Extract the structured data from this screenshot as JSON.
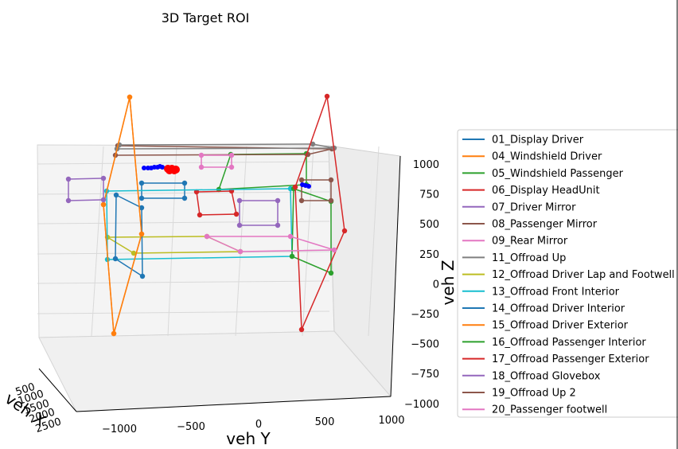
{
  "chart_data": {
    "type": "line3d",
    "title": "3D Target ROI",
    "xlabel": "veh X",
    "ylabel": "veh Y",
    "zlabel": "veh Z",
    "y_ticks": [
      "−1000",
      "−500",
      "0",
      "500",
      "1000"
    ],
    "z_ticks": [
      "1000",
      "750",
      "500",
      "250",
      "0",
      "−250",
      "−500",
      "−750",
      "−1000"
    ],
    "x_ticks": [
      "500",
      "1000",
      "1500",
      "2000",
      "2500"
    ],
    "legend_position": "right",
    "series": [
      {
        "name": "01_Display Driver",
        "color": "#1f77b4",
        "points": [
          [
            178,
            230
          ],
          [
            232,
            230
          ],
          [
            232,
            249
          ],
          [
            178,
            249
          ],
          [
            178,
            230
          ]
        ]
      },
      {
        "name": "04_Windshield Driver",
        "color": "#ff7f0e",
        "points": [
          [
            163,
            122
          ],
          [
            130,
            257
          ],
          [
            143,
            419
          ],
          [
            178,
            294
          ],
          [
            163,
            122
          ]
        ]
      },
      {
        "name": "05_Windshield Passenger",
        "color": "#2ca02c",
        "points": [
          [
            290,
            194
          ],
          [
            275,
            238
          ],
          [
            385,
            232
          ],
          [
            385,
            193
          ],
          [
            290,
            194
          ]
        ]
      },
      {
        "name": "06_Display HeadUnit",
        "color": "#d62728",
        "points": [
          [
            247,
            241
          ],
          [
            291,
            240
          ],
          [
            297,
            269
          ],
          [
            251,
            270
          ],
          [
            247,
            241
          ]
        ]
      },
      {
        "name": "07_Driver Mirror",
        "color": "#9467bd",
        "points": [
          [
            301,
            252
          ],
          [
            349,
            252
          ],
          [
            349,
            283
          ],
          [
            301,
            283
          ],
          [
            301,
            252
          ]
        ]
      },
      {
        "name": "08_Passenger Mirror",
        "color": "#8c564b",
        "points": [
          [
            148,
            183
          ],
          [
            417,
            187
          ],
          [
            387,
            194
          ],
          [
            145,
            195
          ],
          [
            148,
            183
          ]
        ]
      },
      {
        "name": "09_Rear Mirror",
        "color": "#e377c2",
        "points": [
          [
            253,
            195
          ],
          [
            291,
            195
          ],
          [
            291,
            210
          ],
          [
            253,
            210
          ],
          [
            253,
            195
          ]
        ]
      },
      {
        "name": "11_Offroad Up",
        "color": "#7f7f7f",
        "points": [
          [
            150,
            182
          ],
          [
            393,
            181
          ],
          [
            420,
            186
          ],
          [
            147,
            187
          ],
          [
            150,
            182
          ]
        ]
      },
      {
        "name": "12_Offroad Driver Lap and Footwell",
        "color": "#bcbd22",
        "points": [
          [
            135,
            298
          ],
          [
            260,
            297
          ],
          [
            302,
            316
          ],
          [
            168,
            318
          ],
          [
            135,
            298
          ]
        ]
      },
      {
        "name": "13_Offroad Front Interior",
        "color": "#17becf",
        "points": [
          [
            134,
            240
          ],
          [
            365,
            237
          ],
          [
            367,
            322
          ],
          [
            135,
            326
          ],
          [
            134,
            240
          ]
        ]
      },
      {
        "name": "14_Offroad Driver Interior",
        "color": "#1f77b4",
        "points": [
          [
            146,
            245
          ],
          [
            178,
            261
          ],
          [
            179,
            347
          ],
          [
            145,
            325
          ],
          [
            146,
            245
          ]
        ]
      },
      {
        "name": "15_Offroad Driver Exterior",
        "color": "#ff7f0e",
        "points": [
          [
            163,
            122
          ],
          [
            130,
            257
          ],
          [
            143,
            419
          ],
          [
            178,
            294
          ],
          [
            163,
            122
          ]
        ]
      },
      {
        "name": "16_Offroad Passenger Interior",
        "color": "#2ca02c",
        "points": [
          [
            369,
            237
          ],
          [
            416,
            253
          ],
          [
            416,
            343
          ],
          [
            367,
            322
          ],
          [
            369,
            237
          ]
        ]
      },
      {
        "name": "17_Offroad Passenger Exterior",
        "color": "#d62728",
        "points": [
          [
            411,
            121
          ],
          [
            371,
            235
          ],
          [
            379,
            414
          ],
          [
            433,
            290
          ],
          [
            411,
            121
          ]
        ]
      },
      {
        "name": "18_Offroad Glovebox",
        "color": "#9467bd",
        "points": [
          [
            86,
            225
          ],
          [
            130,
            224
          ],
          [
            130,
            251
          ],
          [
            86,
            252
          ],
          [
            86,
            225
          ]
        ]
      },
      {
        "name": "19_Offroad Up 2",
        "color": "#8c564b",
        "points": [
          [
            379,
            226
          ],
          [
            416,
            226
          ],
          [
            416,
            252
          ],
          [
            379,
            252
          ],
          [
            379,
            226
          ]
        ]
      },
      {
        "name": "20_Passenger footwell",
        "color": "#e377c2",
        "points": [
          [
            260,
            297
          ],
          [
            365,
            297
          ],
          [
            420,
            314
          ],
          [
            302,
            316
          ],
          [
            260,
            297
          ]
        ]
      }
    ],
    "marker_points": [
      {
        "color": "#0000ff",
        "points": [
          [
            181,
            211
          ],
          [
            186,
            211
          ],
          [
            190,
            211
          ],
          [
            194,
            210
          ],
          [
            198,
            210
          ],
          [
            201,
            209
          ],
          [
            204,
            210
          ],
          [
            380,
            232
          ],
          [
            384,
            233
          ],
          [
            388,
            234
          ]
        ]
      },
      {
        "color": "#ff0000",
        "points": [
          [
            211,
            212
          ],
          [
            216,
            212
          ],
          [
            221,
            213
          ],
          [
            213,
            214
          ],
          [
            219,
            214
          ]
        ]
      }
    ]
  }
}
